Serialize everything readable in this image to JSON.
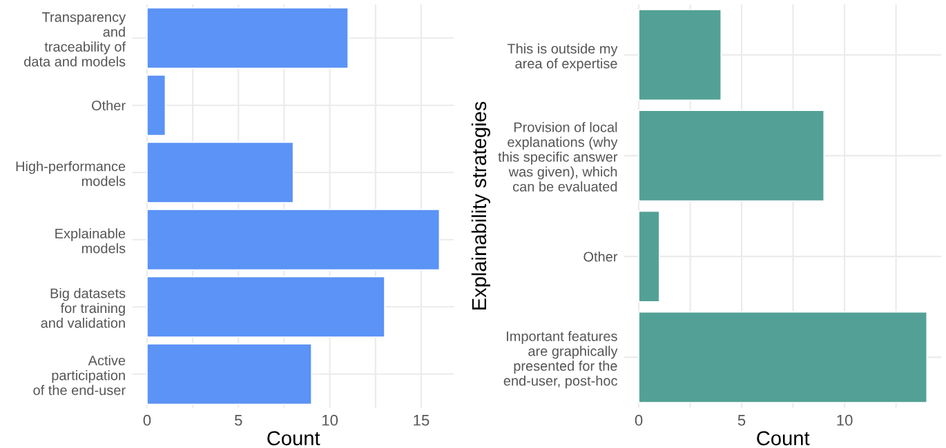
{
  "chart_data": [
    {
      "type": "bar",
      "orientation": "horizontal",
      "xlabel": "Count",
      "categories": [
        "Transparency\nand\ntraceability of\ndata and models",
        "Other",
        "High-performance\nmodels",
        "Explainable\nmodels",
        "Big datasets\nfor training\nand validation",
        "Active\nparticipation\nof the end-user"
      ],
      "values": [
        11,
        1,
        8,
        16,
        13,
        9
      ],
      "color": "#5b93f6",
      "xlim": [
        -0.8,
        16.8
      ],
      "xticks": [
        0,
        {
          "value": 2.5,
          "label": null
        },
        5,
        {
          "value": 7.5,
          "label": null
        },
        10,
        {
          "value": 12.5,
          "label": null
        },
        15
      ],
      "grid": true
    },
    {
      "type": "bar",
      "orientation": "horizontal",
      "xlabel": "Count",
      "ylabel": "Explainability strategies",
      "categories": [
        "This is outside my\narea of expertise",
        "Provision of local\nexplanations (why\nthis specific answer\nwas given), which\ncan be evaluated",
        "Other",
        "Important features\nare graphically\npresented for the\nend-user, post-hoc"
      ],
      "values": [
        4,
        9,
        1,
        14
      ],
      "color": "#53a196",
      "xlim": [
        -0.7,
        14.7
      ],
      "xticks": [
        0,
        {
          "value": 2.5,
          "label": null
        },
        5,
        {
          "value": 7.5,
          "label": null
        },
        10,
        {
          "value": 12.5,
          "label": null
        }
      ],
      "grid": true
    }
  ]
}
